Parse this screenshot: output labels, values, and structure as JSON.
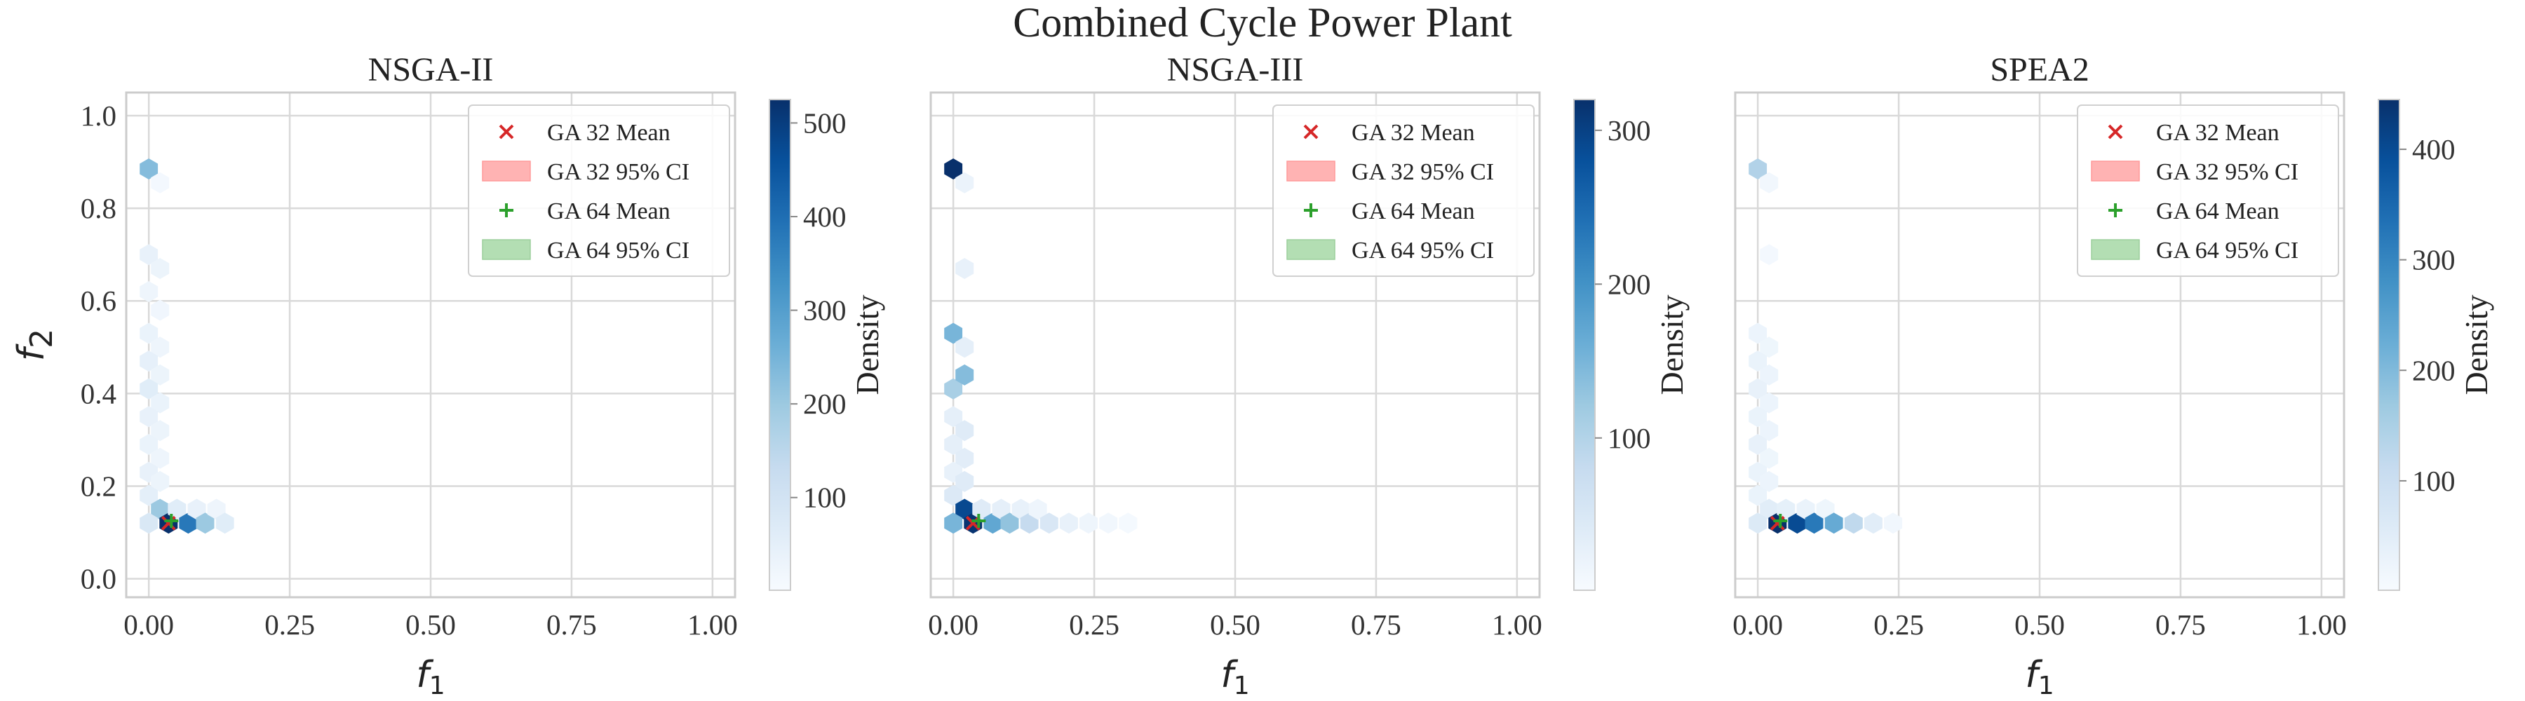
{
  "figure": {
    "title": "Combined Cycle Power Plant"
  },
  "colors": {
    "ga32_mean": "#d62728",
    "ga32_ci": "#ffb3b3",
    "ga64_mean": "#2ca02c",
    "ga64_ci": "#b3deb3",
    "grid": "#d9d9d9",
    "frame": "#cccccc",
    "colormap": "Blues"
  },
  "chart_data": [
    {
      "type": "hexbin",
      "title": "NSGA-II",
      "xlabel": "f_1",
      "ylabel": "f_2",
      "xlim": [
        -0.04,
        1.04
      ],
      "ylim": [
        -0.04,
        1.05
      ],
      "xticks": [
        "0.00",
        "0.25",
        "0.50",
        "0.75",
        "1.00"
      ],
      "xtick_values": [
        0,
        0.25,
        0.5,
        0.75,
        1.0
      ],
      "yticks": [
        "0.0",
        "0.2",
        "0.4",
        "0.6",
        "0.8",
        "1.0"
      ],
      "ytick_values": [
        0,
        0.2,
        0.4,
        0.6,
        0.8,
        1.0
      ],
      "colorbar": {
        "label": "Density",
        "min": 1,
        "max": 525,
        "ticks": [
          100,
          200,
          300,
          400,
          500
        ]
      },
      "legend": {
        "position": "upper right",
        "entries": [
          {
            "label": "GA 32 Mean",
            "marker": "x"
          },
          {
            "label": "GA 32 95% CI",
            "marker": "patch-red"
          },
          {
            "label": "GA 64 Mean",
            "marker": "+"
          },
          {
            "label": "GA 64 95% CI",
            "marker": "patch-green"
          }
        ]
      },
      "bins": [
        {
          "x": 0.0,
          "y": 0.885,
          "d": 230
        },
        {
          "x": 0.02,
          "y": 0.855,
          "d": 12
        },
        {
          "x": 0.0,
          "y": 0.7,
          "d": 40
        },
        {
          "x": 0.02,
          "y": 0.67,
          "d": 30
        },
        {
          "x": 0.0,
          "y": 0.62,
          "d": 25
        },
        {
          "x": 0.02,
          "y": 0.58,
          "d": 20
        },
        {
          "x": 0.0,
          "y": 0.53,
          "d": 35
        },
        {
          "x": 0.02,
          "y": 0.5,
          "d": 25
        },
        {
          "x": 0.0,
          "y": 0.47,
          "d": 45
        },
        {
          "x": 0.02,
          "y": 0.44,
          "d": 30
        },
        {
          "x": 0.0,
          "y": 0.41,
          "d": 60
        },
        {
          "x": 0.02,
          "y": 0.38,
          "d": 35
        },
        {
          "x": 0.0,
          "y": 0.35,
          "d": 40
        },
        {
          "x": 0.02,
          "y": 0.32,
          "d": 30
        },
        {
          "x": 0.0,
          "y": 0.29,
          "d": 35
        },
        {
          "x": 0.02,
          "y": 0.26,
          "d": 25
        },
        {
          "x": 0.0,
          "y": 0.23,
          "d": 40
        },
        {
          "x": 0.02,
          "y": 0.21,
          "d": 30
        },
        {
          "x": 0.0,
          "y": 0.18,
          "d": 50
        },
        {
          "x": 0.02,
          "y": 0.15,
          "d": 200
        },
        {
          "x": 0.0,
          "y": 0.12,
          "d": 80
        },
        {
          "x": 0.035,
          "y": 0.12,
          "d": 525
        },
        {
          "x": 0.05,
          "y": 0.15,
          "d": 60
        },
        {
          "x": 0.07,
          "y": 0.12,
          "d": 380
        },
        {
          "x": 0.085,
          "y": 0.15,
          "d": 40
        },
        {
          "x": 0.1,
          "y": 0.12,
          "d": 200
        },
        {
          "x": 0.12,
          "y": 0.15,
          "d": 25
        },
        {
          "x": 0.135,
          "y": 0.12,
          "d": 60
        }
      ],
      "ga32_mean": {
        "x": 0.035,
        "y": 0.12
      },
      "ga64_mean": {
        "x": 0.04,
        "y": 0.125
      }
    },
    {
      "type": "hexbin",
      "title": "NSGA-III",
      "xlabel": "f_1",
      "ylabel": "",
      "xlim": [
        -0.04,
        1.04
      ],
      "ylim": [
        -0.04,
        1.05
      ],
      "xticks": [
        "0.00",
        "0.25",
        "0.50",
        "0.75",
        "1.00"
      ],
      "xtick_values": [
        0,
        0.25,
        0.5,
        0.75,
        1.0
      ],
      "yticks": [],
      "ytick_values": [
        0,
        0.2,
        0.4,
        0.6,
        0.8,
        1.0
      ],
      "colorbar": {
        "label": "Density",
        "min": 1,
        "max": 320,
        "ticks": [
          100,
          200,
          300
        ]
      },
      "legend": {
        "position": "upper right",
        "entries": [
          {
            "label": "GA 32 Mean",
            "marker": "x"
          },
          {
            "label": "GA 32 95% CI",
            "marker": "patch-red"
          },
          {
            "label": "GA 64 Mean",
            "marker": "+"
          },
          {
            "label": "GA 64 95% CI",
            "marker": "patch-green"
          }
        ]
      },
      "bins": [
        {
          "x": 0.0,
          "y": 0.885,
          "d": 320
        },
        {
          "x": 0.02,
          "y": 0.855,
          "d": 20
        },
        {
          "x": 0.02,
          "y": 0.67,
          "d": 25
        },
        {
          "x": 0.0,
          "y": 0.53,
          "d": 150
        },
        {
          "x": 0.02,
          "y": 0.5,
          "d": 30
        },
        {
          "x": 0.0,
          "y": 0.41,
          "d": 110
        },
        {
          "x": 0.02,
          "y": 0.44,
          "d": 140
        },
        {
          "x": 0.0,
          "y": 0.35,
          "d": 30
        },
        {
          "x": 0.02,
          "y": 0.32,
          "d": 40
        },
        {
          "x": 0.0,
          "y": 0.29,
          "d": 30
        },
        {
          "x": 0.02,
          "y": 0.26,
          "d": 35
        },
        {
          "x": 0.0,
          "y": 0.23,
          "d": 25
        },
        {
          "x": 0.02,
          "y": 0.21,
          "d": 40
        },
        {
          "x": 0.0,
          "y": 0.18,
          "d": 45
        },
        {
          "x": 0.02,
          "y": 0.15,
          "d": 290
        },
        {
          "x": 0.0,
          "y": 0.12,
          "d": 150
        },
        {
          "x": 0.035,
          "y": 0.12,
          "d": 315
        },
        {
          "x": 0.05,
          "y": 0.15,
          "d": 40
        },
        {
          "x": 0.07,
          "y": 0.12,
          "d": 170
        },
        {
          "x": 0.085,
          "y": 0.15,
          "d": 30
        },
        {
          "x": 0.1,
          "y": 0.12,
          "d": 130
        },
        {
          "x": 0.12,
          "y": 0.15,
          "d": 25
        },
        {
          "x": 0.135,
          "y": 0.12,
          "d": 80
        },
        {
          "x": 0.15,
          "y": 0.15,
          "d": 15
        },
        {
          "x": 0.17,
          "y": 0.12,
          "d": 50
        },
        {
          "x": 0.205,
          "y": 0.12,
          "d": 25
        },
        {
          "x": 0.24,
          "y": 0.12,
          "d": 15
        },
        {
          "x": 0.275,
          "y": 0.12,
          "d": 10
        },
        {
          "x": 0.31,
          "y": 0.12,
          "d": 6
        }
      ],
      "ga32_mean": {
        "x": 0.035,
        "y": 0.12
      },
      "ga64_mean": {
        "x": 0.045,
        "y": 0.125
      }
    },
    {
      "type": "hexbin",
      "title": "SPEA2",
      "xlabel": "f_1",
      "ylabel": "",
      "xlim": [
        -0.04,
        1.04
      ],
      "ylim": [
        -0.04,
        1.05
      ],
      "xticks": [
        "0.00",
        "0.25",
        "0.50",
        "0.75",
        "1.00"
      ],
      "xtick_values": [
        0,
        0.25,
        0.5,
        0.75,
        1.0
      ],
      "yticks": [],
      "ytick_values": [
        0,
        0.2,
        0.4,
        0.6,
        0.8,
        1.0
      ],
      "colorbar": {
        "label": "Density",
        "min": 1,
        "max": 445,
        "ticks": [
          100,
          200,
          300,
          400
        ]
      },
      "legend": {
        "position": "upper right",
        "entries": [
          {
            "label": "GA 32 Mean",
            "marker": "x"
          },
          {
            "label": "GA 32 95% CI",
            "marker": "patch-red"
          },
          {
            "label": "GA 64 Mean",
            "marker": "+"
          },
          {
            "label": "GA 64 95% CI",
            "marker": "patch-green"
          }
        ]
      },
      "bins": [
        {
          "x": 0.0,
          "y": 0.885,
          "d": 140
        },
        {
          "x": 0.02,
          "y": 0.855,
          "d": 15
        },
        {
          "x": 0.02,
          "y": 0.7,
          "d": 10
        },
        {
          "x": 0.0,
          "y": 0.53,
          "d": 25
        },
        {
          "x": 0.02,
          "y": 0.5,
          "d": 20
        },
        {
          "x": 0.0,
          "y": 0.47,
          "d": 30
        },
        {
          "x": 0.02,
          "y": 0.44,
          "d": 25
        },
        {
          "x": 0.0,
          "y": 0.41,
          "d": 35
        },
        {
          "x": 0.02,
          "y": 0.38,
          "d": 25
        },
        {
          "x": 0.0,
          "y": 0.35,
          "d": 30
        },
        {
          "x": 0.02,
          "y": 0.32,
          "d": 25
        },
        {
          "x": 0.0,
          "y": 0.29,
          "d": 35
        },
        {
          "x": 0.02,
          "y": 0.26,
          "d": 20
        },
        {
          "x": 0.0,
          "y": 0.23,
          "d": 30
        },
        {
          "x": 0.02,
          "y": 0.21,
          "d": 25
        },
        {
          "x": 0.0,
          "y": 0.18,
          "d": 30
        },
        {
          "x": 0.02,
          "y": 0.15,
          "d": 50
        },
        {
          "x": 0.0,
          "y": 0.12,
          "d": 60
        },
        {
          "x": 0.035,
          "y": 0.12,
          "d": 445
        },
        {
          "x": 0.05,
          "y": 0.15,
          "d": 40
        },
        {
          "x": 0.07,
          "y": 0.12,
          "d": 400
        },
        {
          "x": 0.085,
          "y": 0.15,
          "d": 30
        },
        {
          "x": 0.1,
          "y": 0.12,
          "d": 320
        },
        {
          "x": 0.12,
          "y": 0.15,
          "d": 20
        },
        {
          "x": 0.135,
          "y": 0.12,
          "d": 230
        },
        {
          "x": 0.17,
          "y": 0.12,
          "d": 120
        },
        {
          "x": 0.205,
          "y": 0.12,
          "d": 50
        },
        {
          "x": 0.24,
          "y": 0.12,
          "d": 15
        }
      ],
      "ga32_mean": {
        "x": 0.035,
        "y": 0.12
      },
      "ga64_mean": {
        "x": 0.04,
        "y": 0.125
      }
    }
  ]
}
